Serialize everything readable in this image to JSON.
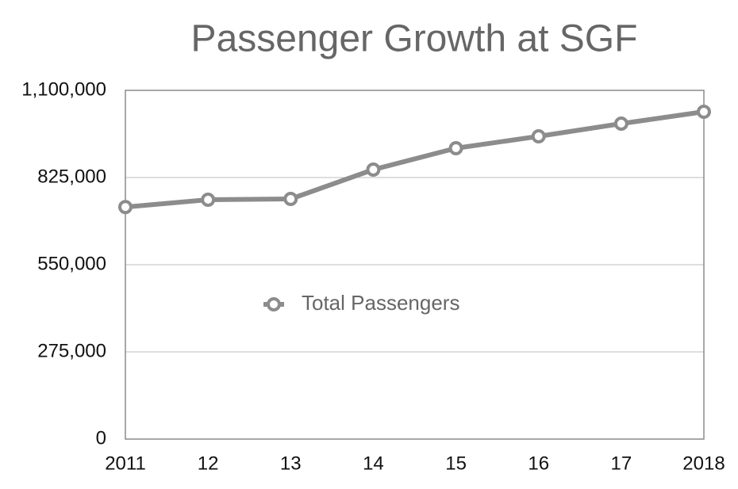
{
  "chart_data": {
    "type": "line",
    "title": "Passenger Growth at SGF",
    "categories": [
      "2011",
      "12",
      "13",
      "14",
      "15",
      "16",
      "17",
      "2018"
    ],
    "series": [
      {
        "name": "Total Passengers",
        "color": "#8c8c8c",
        "values": [
          732000,
          755000,
          757500,
          850000,
          917500,
          955000,
          995000,
          1032500
        ]
      }
    ],
    "ylim": [
      0,
      1100000
    ],
    "yticks": [
      0,
      {
        "value": 275000,
        "label": "275,000"
      },
      {
        "value": 550000,
        "label": "550,000"
      },
      {
        "value": 825000,
        "label": "825,000"
      },
      {
        "value": 1100000,
        "label": "1,100,000"
      }
    ],
    "grid": true,
    "legend": "center"
  }
}
